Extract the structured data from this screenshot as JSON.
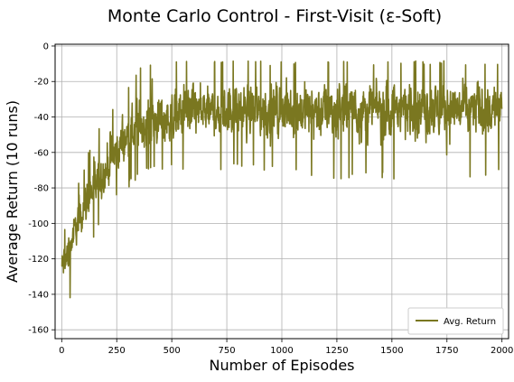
{
  "chart_data": {
    "type": "line",
    "title": "Monte Carlo Control - First-Visit (ε-Soft)",
    "xlabel": "Number of Episodes",
    "ylabel": "Average Return (10 runs)",
    "xlim": [
      -30,
      2030
    ],
    "ylim": [
      -165,
      1
    ],
    "x_ticks": [
      0,
      250,
      500,
      750,
      1000,
      1250,
      1500,
      1750,
      2000
    ],
    "y_ticks": [
      0,
      -20,
      -40,
      -60,
      -80,
      -100,
      -120,
      -140,
      -160
    ],
    "grid": true,
    "legend_position": "lower-right",
    "series": [
      {
        "name": "Avg. Return",
        "color": "#7a7720",
        "x_range": [
          0,
          2000
        ],
        "n_points": 2001,
        "trend": {
          "x": [
            0,
            25,
            50,
            75,
            100,
            150,
            200,
            250,
            300,
            350,
            400,
            500,
            600,
            750,
            1000,
            1250,
            1500,
            1750,
            2000
          ],
          "mean": [
            -125,
            -118,
            -108,
            -100,
            -92,
            -80,
            -70,
            -60,
            -52,
            -47,
            -44,
            -40,
            -38,
            -37,
            -36,
            -36,
            -35,
            -35,
            -35
          ],
          "upper": [
            -107,
            -100,
            -85,
            -75,
            -68,
            -50,
            -38,
            -30,
            -22,
            -12,
            -9,
            -8,
            -8,
            -8,
            -8,
            -8,
            -8,
            -8,
            -8
          ],
          "lower": [
            -145,
            -158,
            -130,
            -120,
            -110,
            -108,
            -95,
            -85,
            -80,
            -75,
            -72,
            -70,
            -70,
            -70,
            -72,
            -75,
            -75,
            -75,
            -73
          ]
        }
      }
    ]
  }
}
